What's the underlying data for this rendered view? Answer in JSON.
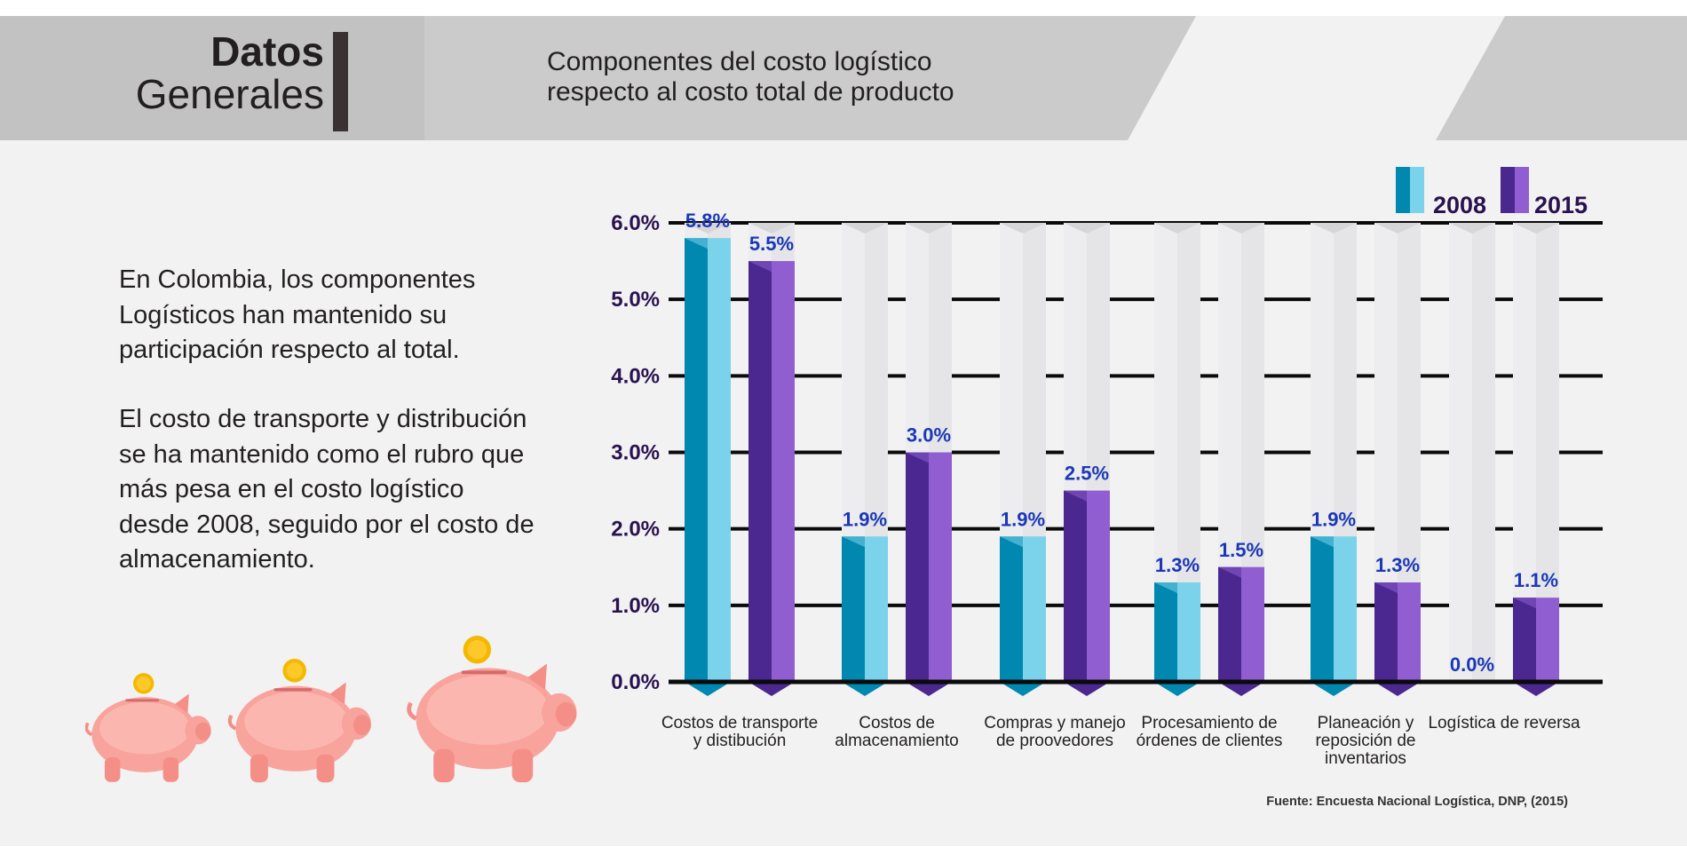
{
  "header": {
    "title_bold": "Datos",
    "title_light": "Generales",
    "subtitle_line1": "Componentes del costo logístico",
    "subtitle_line2": "respecto al costo total de producto"
  },
  "text": {
    "paragraph1": "En Colombia, los componentes Logísticos han mantenido su participación respecto al total.",
    "paragraph2": "El costo de transporte y distribución se ha mantenido como el rubro que más pesa en el costo logístico desde 2008, seguido por el costo de almacenamiento."
  },
  "source": "Fuente: Encuesta Nacional Logística, DNP, (2015)",
  "colors": {
    "series2008_front": "#7ad3ea",
    "series2008_side": "#0088b0",
    "series2015_front": "#905ed1",
    "series2015_side": "#4b2790",
    "label_color": "#1a37b8",
    "axis_color": "#2a1250"
  },
  "icons": [
    "piggy-bank-icon",
    "coin-icon"
  ],
  "chart_data": {
    "type": "bar",
    "title": "Componentes del costo logístico respecto al costo total de producto",
    "categories": [
      [
        "Costos de transporte",
        "y distibución"
      ],
      [
        "Costos de",
        "almacenamiento"
      ],
      [
        "Compras y manejo",
        "de proovedores"
      ],
      [
        "Procesamiento de",
        "órdenes de clientes"
      ],
      [
        "Planeación y",
        "reposición de",
        "inventarios"
      ],
      [
        "Logística de reversa"
      ]
    ],
    "series": [
      {
        "name": "2008",
        "values": [
          5.8,
          1.9,
          1.9,
          1.3,
          1.9,
          0.0
        ]
      },
      {
        "name": "2015",
        "values": [
          5.5,
          3.0,
          2.5,
          1.5,
          1.3,
          1.1
        ]
      }
    ],
    "data_labels": [
      [
        "5.8%",
        "1.9%",
        "1.9%",
        "1.3%",
        "1.9%",
        "0.0%"
      ],
      [
        "5.5%",
        "3.0%",
        "2.5%",
        "1.5%",
        "1.3%",
        "1.1%"
      ]
    ],
    "yticks": [
      "0.0%",
      "1.0%",
      "2.0%",
      "3.0%",
      "4.0%",
      "5.0%",
      "6.0%"
    ],
    "ylim": [
      0,
      6
    ],
    "unit": "%",
    "grid": true,
    "legend": "top-right"
  }
}
